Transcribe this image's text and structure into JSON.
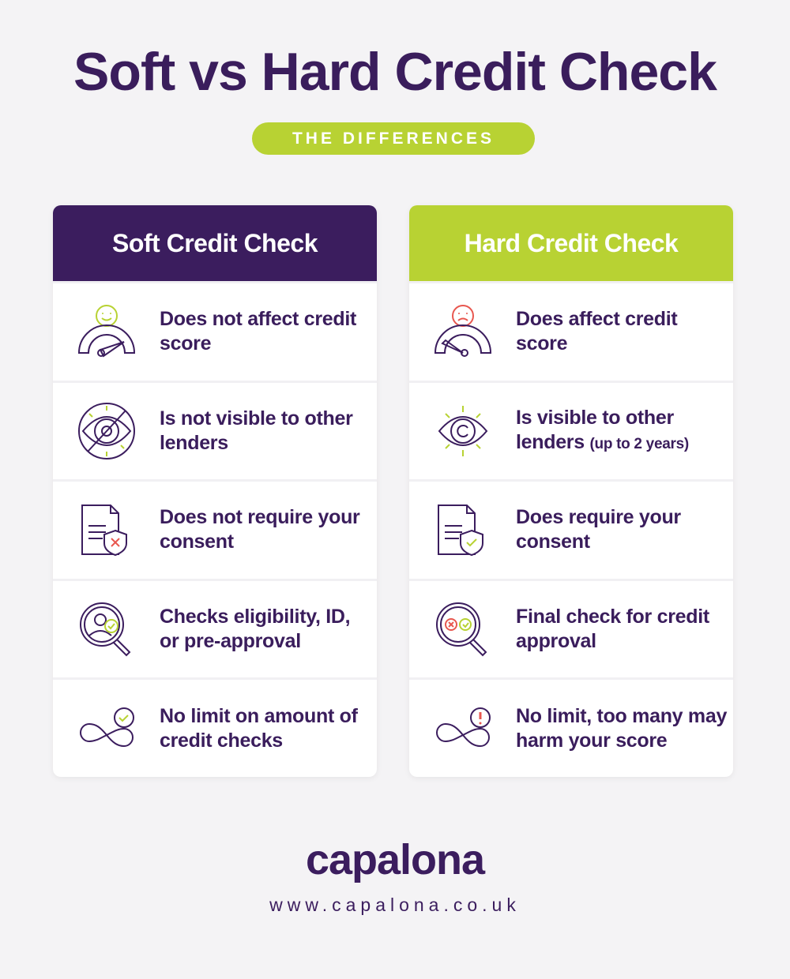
{
  "title": "Soft vs Hard Credit Check",
  "subtitle": "THE DIFFERENCES",
  "soft": {
    "heading": "Soft Credit Check",
    "items": [
      {
        "icon": "gauge-happy-icon",
        "text": "Does not affect credit score"
      },
      {
        "icon": "eye-crossed-icon",
        "text": "Is not visible to other lenders"
      },
      {
        "icon": "document-shield-x-icon",
        "text": "Does not require your consent"
      },
      {
        "icon": "magnifier-person-check-icon",
        "text": "Checks eligibility, ID, or pre-approval"
      },
      {
        "icon": "infinity-check-icon",
        "text": "No limit on amount of credit checks"
      }
    ]
  },
  "hard": {
    "heading": "Hard Credit Check",
    "items": [
      {
        "icon": "gauge-sad-icon",
        "text": "Does affect credit score"
      },
      {
        "icon": "eye-visible-icon",
        "text": "Is visible to other lenders",
        "note": "(up to 2 years)"
      },
      {
        "icon": "document-shield-check-icon",
        "text": "Does require your consent"
      },
      {
        "icon": "magnifier-x-check-icon",
        "text": "Final check for credit approval"
      },
      {
        "icon": "infinity-alert-icon",
        "text": "No limit, too many may harm your score"
      }
    ]
  },
  "brand": {
    "logo": "capalona",
    "url": "www.capalona.co.uk"
  },
  "colors": {
    "purple": "#3b1d5e",
    "green": "#b8d233",
    "red": "#e8574f",
    "background": "#f4f3f5"
  }
}
